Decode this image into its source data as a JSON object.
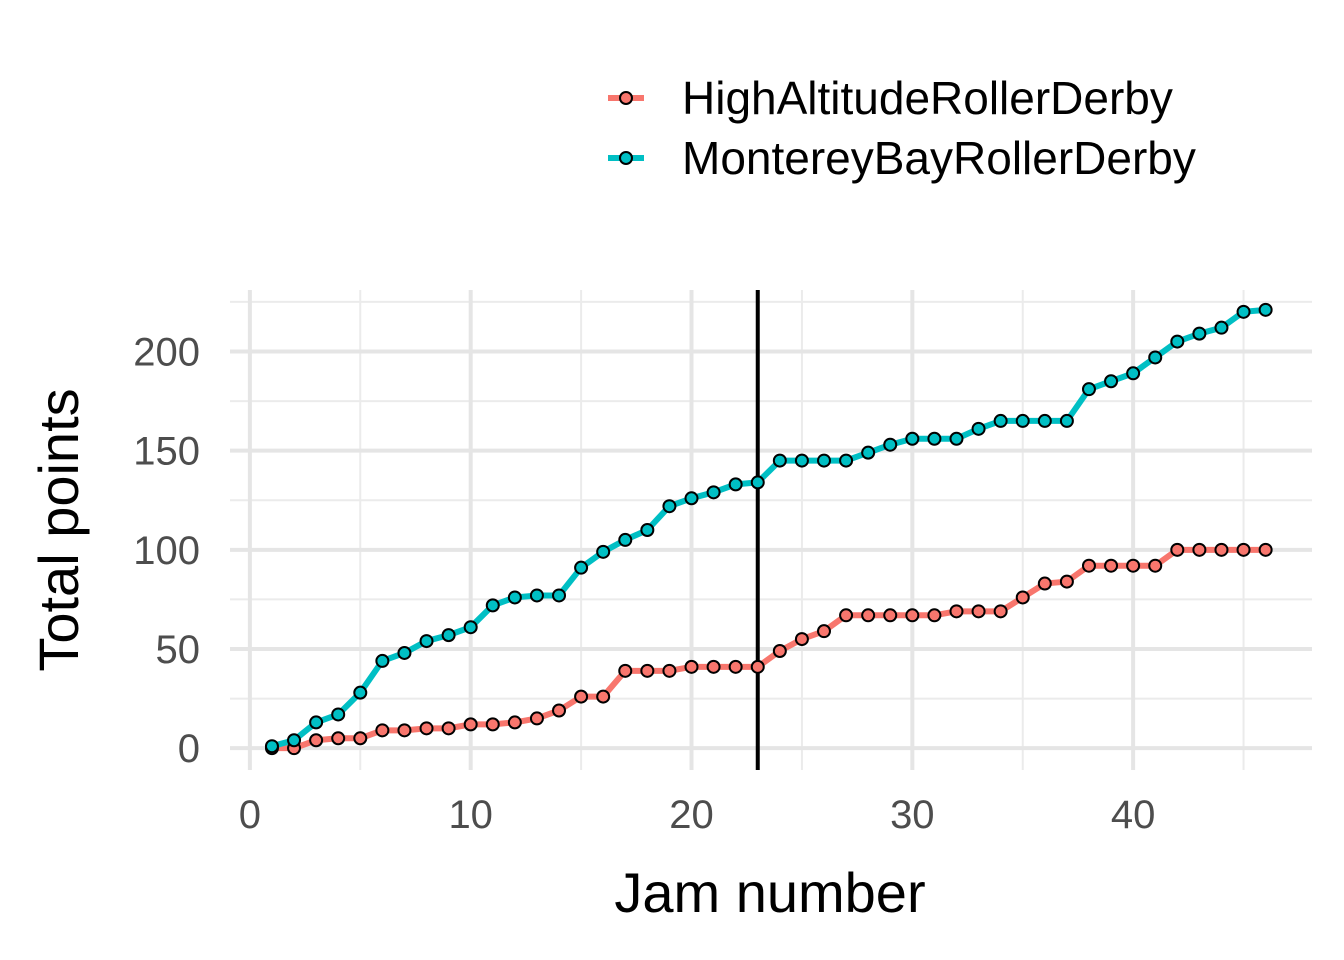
{
  "chart_data": {
    "type": "line",
    "xlabel": "Jam number",
    "ylabel": "Total points",
    "xlim": [
      -0.9,
      48.1
    ],
    "ylim": [
      -11,
      231
    ],
    "x_ticks": [
      0,
      10,
      20,
      30,
      40
    ],
    "y_ticks": [
      0,
      50,
      100,
      150,
      200
    ],
    "grid": true,
    "legend_position": "top-right",
    "vline_x": 23,
    "x": [
      1,
      2,
      3,
      4,
      5,
      6,
      7,
      8,
      9,
      10,
      11,
      12,
      13,
      14,
      15,
      16,
      17,
      18,
      19,
      20,
      21,
      22,
      23,
      24,
      25,
      26,
      27,
      28,
      29,
      30,
      31,
      32,
      33,
      34,
      35,
      36,
      37,
      38,
      39,
      40,
      41,
      42,
      43,
      44,
      45,
      46
    ],
    "series": [
      {
        "name": "HighAltitudeRollerDerby",
        "color": "#F8766D",
        "values": [
          0,
          0,
          4,
          5,
          5,
          9,
          9,
          10,
          10,
          12,
          12,
          13,
          15,
          19,
          26,
          26,
          39,
          39,
          39,
          41,
          41,
          41,
          41,
          49,
          55,
          59,
          67,
          67,
          67,
          67,
          67,
          69,
          69,
          69,
          76,
          83,
          84,
          92,
          92,
          92,
          92,
          100,
          100,
          100,
          100,
          100
        ]
      },
      {
        "name": "MontereyBayRollerDerby",
        "color": "#00BFC4",
        "values": [
          1,
          4,
          13,
          17,
          28,
          44,
          48,
          54,
          57,
          61,
          72,
          76,
          77,
          77,
          91,
          99,
          105,
          110,
          122,
          126,
          129,
          133,
          134,
          145,
          145,
          145,
          145,
          149,
          153,
          156,
          156,
          156,
          161,
          165,
          165,
          165,
          165,
          181,
          185,
          189,
          197,
          205,
          209,
          212,
          220,
          221
        ]
      }
    ]
  }
}
